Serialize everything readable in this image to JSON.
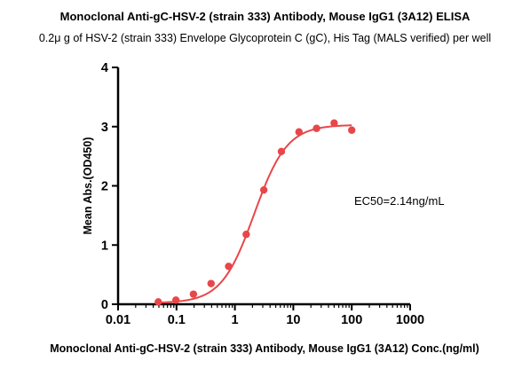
{
  "chart_data": {
    "type": "line",
    "title": "Monoclonal Anti-gC-HSV-2 (strain 333) Antibody, Mouse IgG1 (3A12) ELISA",
    "subtitle": "0.2μ g of HSV-2 (strain 333) Envelope Glycoprotein C (gC), His Tag (MALS verified) per well",
    "xlabel": "Monoclonal Anti-gC-HSV-2 (strain 333) Antibody, Mouse IgG1 (3A12) Conc.(ng/ml)",
    "ylabel": "Mean Abs.(OD450)",
    "x_scale": "log",
    "xlim": [
      0.01,
      1000
    ],
    "ylim": [
      0,
      4
    ],
    "x_ticks": [
      0.01,
      0.1,
      1,
      10,
      100,
      1000
    ],
    "x_tick_labels": [
      "0.01",
      "0.1",
      "1",
      "10",
      "100",
      "1000"
    ],
    "y_ticks": [
      0,
      1,
      2,
      3,
      4
    ],
    "y_tick_labels": [
      "0",
      "1",
      "2",
      "3",
      "4"
    ],
    "grid": false,
    "annotation": "EC50=2.14ng/mL",
    "color": "#e8474a",
    "series": [
      {
        "x": [
          0.0488,
          0.0977,
          0.195,
          0.391,
          0.781,
          1.5625,
          3.125,
          6.25,
          12.5,
          25,
          50,
          100
        ],
        "y": [
          0.04,
          0.07,
          0.17,
          0.35,
          0.64,
          1.18,
          1.93,
          2.58,
          2.91,
          2.97,
          3.06,
          2.94
        ]
      }
    ],
    "fit": {
      "model": "4PL",
      "bottom": 0.02,
      "top": 3.03,
      "ec50": 2.14,
      "hill": 1.55
    }
  }
}
